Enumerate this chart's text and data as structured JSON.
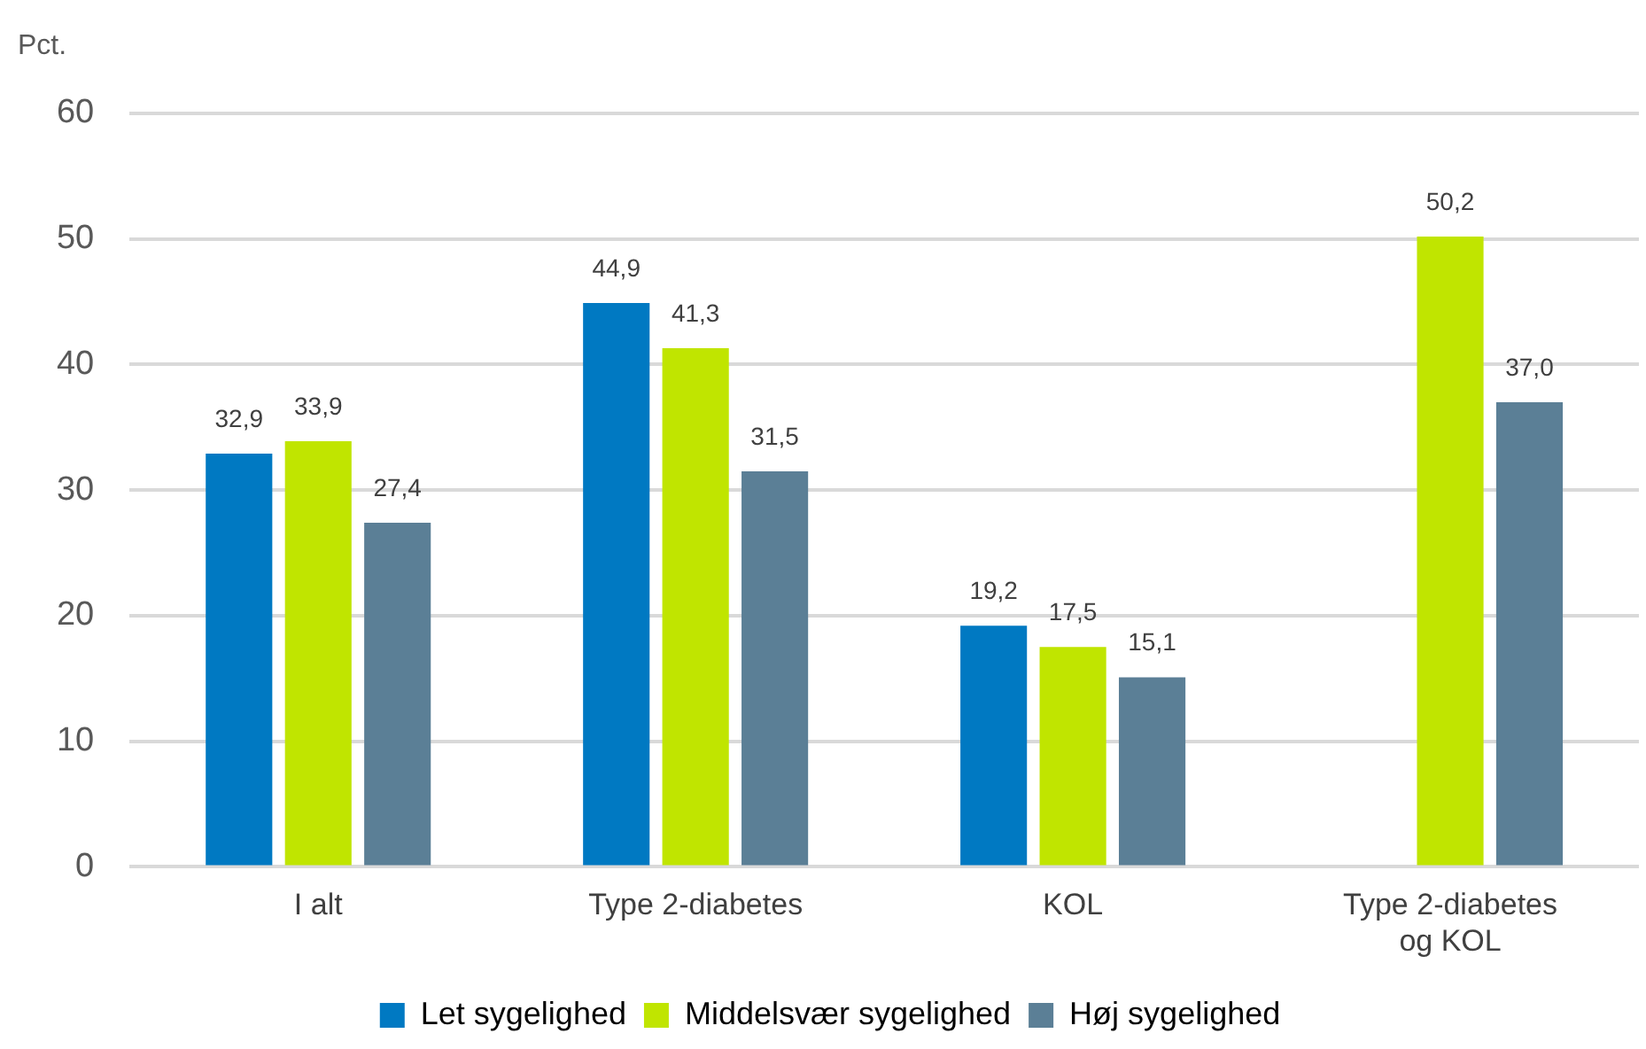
{
  "chart_data": {
    "type": "bar",
    "ylabel": "Pct.",
    "categories": [
      "I alt",
      "Type 2-diabetes",
      "KOL",
      "Type 2-diabetes og KOL"
    ],
    "series": [
      {
        "name": "Let sygelighed",
        "color": "#0079c2",
        "values": [
          32.9,
          44.9,
          19.2,
          null
        ],
        "value_labels": [
          "32,9",
          "44,9",
          "19,2",
          null
        ]
      },
      {
        "name": "Middelsvær sygelighed",
        "color": "#c0e500",
        "values": [
          33.9,
          41.3,
          17.5,
          50.2
        ],
        "value_labels": [
          "33,9",
          "41,3",
          "17,5",
          "50,2"
        ]
      },
      {
        "name": "Høj sygelighed",
        "color": "#5b7f96",
        "values": [
          27.4,
          31.5,
          15.1,
          37.0
        ],
        "value_labels": [
          "27,4",
          "31,5",
          "15,1",
          "37,0"
        ]
      }
    ],
    "ylim": [
      0,
      60
    ],
    "yticks": [
      0,
      10,
      20,
      30,
      40,
      50,
      60
    ],
    "grid": "y",
    "legend": "bottom"
  }
}
